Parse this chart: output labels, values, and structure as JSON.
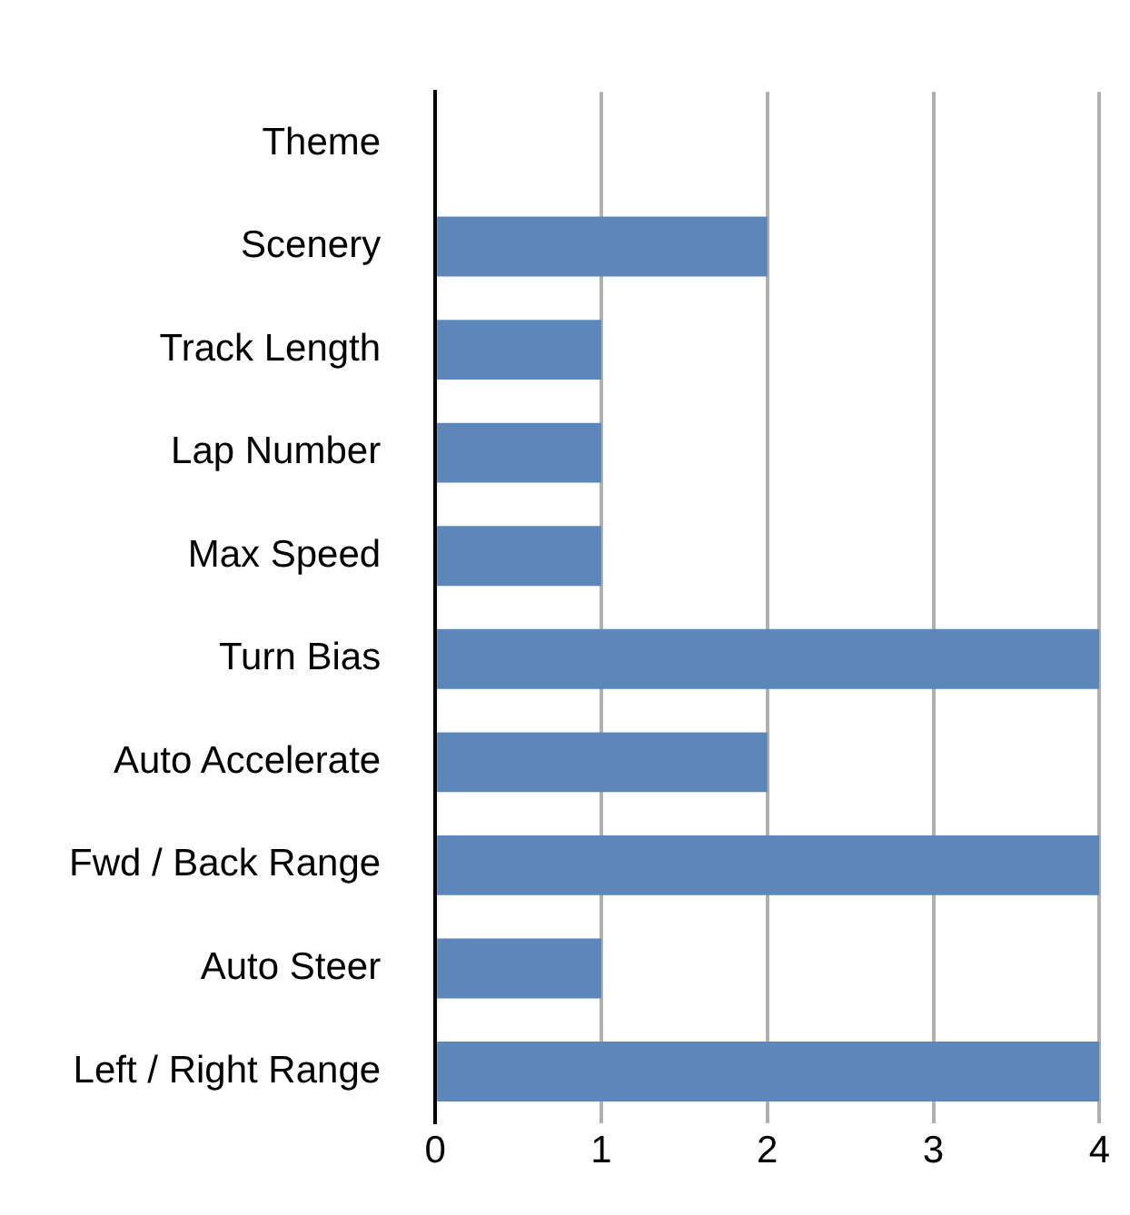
{
  "chart_data": {
    "type": "bar",
    "orientation": "horizontal",
    "categories": [
      "Theme",
      "Scenery",
      "Track Length",
      "Lap Number",
      "Max Speed",
      "Turn Bias",
      "Auto Accelerate",
      "Fwd / Back Range",
      "Auto Steer",
      "Left / Right Range"
    ],
    "values": [
      0,
      2,
      1,
      1,
      1,
      4,
      2,
      4,
      1,
      4
    ],
    "color": "#5b87bb",
    "xlim": [
      0,
      4
    ],
    "xticks": [
      0,
      1,
      2,
      3,
      4
    ],
    "grid": "x",
    "legend": false
  }
}
